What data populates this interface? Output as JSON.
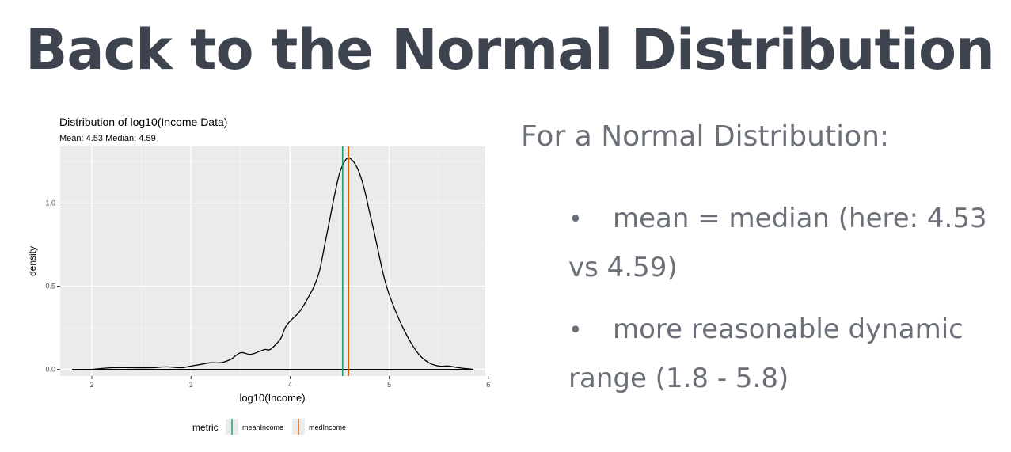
{
  "slide": {
    "title": "Back to the Normal Distribution"
  },
  "side_panel": {
    "heading": "For a Normal Distribution:",
    "bullets": [
      "mean = median (here: 4.53 vs 4.59)",
      "more reasonable dynamic range (1.8 - 5.8)"
    ],
    "bullet_glyph": "•"
  },
  "chart_data": {
    "type": "line",
    "title": "Distribution of log10(Income Data)",
    "subtitle": "Mean: 4.53 Median: 4.59",
    "xlabel": "log10(Income)",
    "ylabel": "density",
    "xlim": [
      1.68,
      5.97
    ],
    "ylim": [
      -0.04,
      1.34
    ],
    "x_ticks": [
      "2",
      "3",
      "4",
      "5",
      "6"
    ],
    "y_ticks": [
      "0.0",
      "0.5",
      "1.0"
    ],
    "grid": true,
    "series": [
      {
        "x": [
          1.8,
          2.0,
          2.2,
          2.4,
          2.6,
          2.75,
          2.9,
          3.0,
          3.1,
          3.2,
          3.3,
          3.4,
          3.5,
          3.6,
          3.7,
          3.75,
          3.8,
          3.9,
          3.95,
          4.0,
          4.1,
          4.2,
          4.25,
          4.3,
          4.35,
          4.4,
          4.45,
          4.5,
          4.55,
          4.58,
          4.6,
          4.65,
          4.7,
          4.75,
          4.8,
          4.85,
          4.9,
          4.95,
          5.0,
          5.1,
          5.2,
          5.3,
          5.4,
          5.5,
          5.6,
          5.7,
          5.85
        ],
        "y": [
          0.0,
          0.0,
          0.01,
          0.01,
          0.01,
          0.015,
          0.01,
          0.02,
          0.03,
          0.04,
          0.04,
          0.06,
          0.1,
          0.09,
          0.11,
          0.12,
          0.12,
          0.18,
          0.25,
          0.29,
          0.35,
          0.45,
          0.51,
          0.6,
          0.75,
          0.9,
          1.05,
          1.18,
          1.25,
          1.27,
          1.27,
          1.24,
          1.18,
          1.08,
          0.95,
          0.82,
          0.68,
          0.55,
          0.45,
          0.3,
          0.18,
          0.09,
          0.04,
          0.02,
          0.02,
          0.01,
          0.0
        ]
      }
    ],
    "vlines": [
      {
        "name": "meanIncome",
        "x": 4.53,
        "color": "#1b9e77"
      },
      {
        "name": "medIncome",
        "x": 4.59,
        "color": "#d95f02"
      }
    ],
    "legend": {
      "title": "metric",
      "position": "bottom",
      "entries": [
        "meanIncome",
        "medIncome"
      ]
    }
  }
}
